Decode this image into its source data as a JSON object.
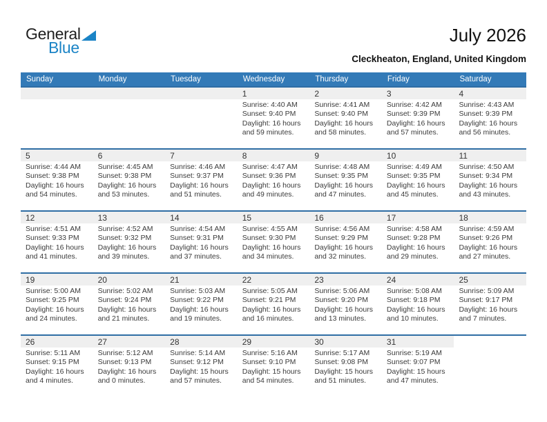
{
  "logo": {
    "general": "General",
    "blue": "Blue"
  },
  "header": {
    "title": "July 2026",
    "subtitle": "Cleckheaton, England, United Kingdom"
  },
  "colors": {
    "header_bar": "#337ab7",
    "row_border": "#2e6da4",
    "strip_gray": "#efefef",
    "logo_blue": "#1b84c6"
  },
  "labels": {
    "sunrise": "Sunrise:",
    "sunset": "Sunset:",
    "daylight": "Daylight:"
  },
  "weekday_headers": [
    "Sunday",
    "Monday",
    "Tuesday",
    "Wednesday",
    "Thursday",
    "Friday",
    "Saturday"
  ],
  "weeks": [
    [
      {
        "day": ""
      },
      {
        "day": ""
      },
      {
        "day": ""
      },
      {
        "day": "1",
        "sunrise": "4:40 AM",
        "sunset": "9:40 PM",
        "daylight": "16 hours and 59 minutes."
      },
      {
        "day": "2",
        "sunrise": "4:41 AM",
        "sunset": "9:40 PM",
        "daylight": "16 hours and 58 minutes."
      },
      {
        "day": "3",
        "sunrise": "4:42 AM",
        "sunset": "9:39 PM",
        "daylight": "16 hours and 57 minutes."
      },
      {
        "day": "4",
        "sunrise": "4:43 AM",
        "sunset": "9:39 PM",
        "daylight": "16 hours and 56 minutes."
      }
    ],
    [
      {
        "day": "5",
        "sunrise": "4:44 AM",
        "sunset": "9:38 PM",
        "daylight": "16 hours and 54 minutes."
      },
      {
        "day": "6",
        "sunrise": "4:45 AM",
        "sunset": "9:38 PM",
        "daylight": "16 hours and 53 minutes."
      },
      {
        "day": "7",
        "sunrise": "4:46 AM",
        "sunset": "9:37 PM",
        "daylight": "16 hours and 51 minutes."
      },
      {
        "day": "8",
        "sunrise": "4:47 AM",
        "sunset": "9:36 PM",
        "daylight": "16 hours and 49 minutes."
      },
      {
        "day": "9",
        "sunrise": "4:48 AM",
        "sunset": "9:35 PM",
        "daylight": "16 hours and 47 minutes."
      },
      {
        "day": "10",
        "sunrise": "4:49 AM",
        "sunset": "9:35 PM",
        "daylight": "16 hours and 45 minutes."
      },
      {
        "day": "11",
        "sunrise": "4:50 AM",
        "sunset": "9:34 PM",
        "daylight": "16 hours and 43 minutes."
      }
    ],
    [
      {
        "day": "12",
        "sunrise": "4:51 AM",
        "sunset": "9:33 PM",
        "daylight": "16 hours and 41 minutes."
      },
      {
        "day": "13",
        "sunrise": "4:52 AM",
        "sunset": "9:32 PM",
        "daylight": "16 hours and 39 minutes."
      },
      {
        "day": "14",
        "sunrise": "4:54 AM",
        "sunset": "9:31 PM",
        "daylight": "16 hours and 37 minutes."
      },
      {
        "day": "15",
        "sunrise": "4:55 AM",
        "sunset": "9:30 PM",
        "daylight": "16 hours and 34 minutes."
      },
      {
        "day": "16",
        "sunrise": "4:56 AM",
        "sunset": "9:29 PM",
        "daylight": "16 hours and 32 minutes."
      },
      {
        "day": "17",
        "sunrise": "4:58 AM",
        "sunset": "9:28 PM",
        "daylight": "16 hours and 29 minutes."
      },
      {
        "day": "18",
        "sunrise": "4:59 AM",
        "sunset": "9:26 PM",
        "daylight": "16 hours and 27 minutes."
      }
    ],
    [
      {
        "day": "19",
        "sunrise": "5:00 AM",
        "sunset": "9:25 PM",
        "daylight": "16 hours and 24 minutes."
      },
      {
        "day": "20",
        "sunrise": "5:02 AM",
        "sunset": "9:24 PM",
        "daylight": "16 hours and 21 minutes."
      },
      {
        "day": "21",
        "sunrise": "5:03 AM",
        "sunset": "9:22 PM",
        "daylight": "16 hours and 19 minutes."
      },
      {
        "day": "22",
        "sunrise": "5:05 AM",
        "sunset": "9:21 PM",
        "daylight": "16 hours and 16 minutes."
      },
      {
        "day": "23",
        "sunrise": "5:06 AM",
        "sunset": "9:20 PM",
        "daylight": "16 hours and 13 minutes."
      },
      {
        "day": "24",
        "sunrise": "5:08 AM",
        "sunset": "9:18 PM",
        "daylight": "16 hours and 10 minutes."
      },
      {
        "day": "25",
        "sunrise": "5:09 AM",
        "sunset": "9:17 PM",
        "daylight": "16 hours and 7 minutes."
      }
    ],
    [
      {
        "day": "26",
        "sunrise": "5:11 AM",
        "sunset": "9:15 PM",
        "daylight": "16 hours and 4 minutes."
      },
      {
        "day": "27",
        "sunrise": "5:12 AM",
        "sunset": "9:13 PM",
        "daylight": "16 hours and 0 minutes."
      },
      {
        "day": "28",
        "sunrise": "5:14 AM",
        "sunset": "9:12 PM",
        "daylight": "15 hours and 57 minutes."
      },
      {
        "day": "29",
        "sunrise": "5:16 AM",
        "sunset": "9:10 PM",
        "daylight": "15 hours and 54 minutes."
      },
      {
        "day": "30",
        "sunrise": "5:17 AM",
        "sunset": "9:08 PM",
        "daylight": "15 hours and 51 minutes."
      },
      {
        "day": "31",
        "sunrise": "5:19 AM",
        "sunset": "9:07 PM",
        "daylight": "15 hours and 47 minutes."
      },
      {
        "day": ""
      }
    ]
  ]
}
